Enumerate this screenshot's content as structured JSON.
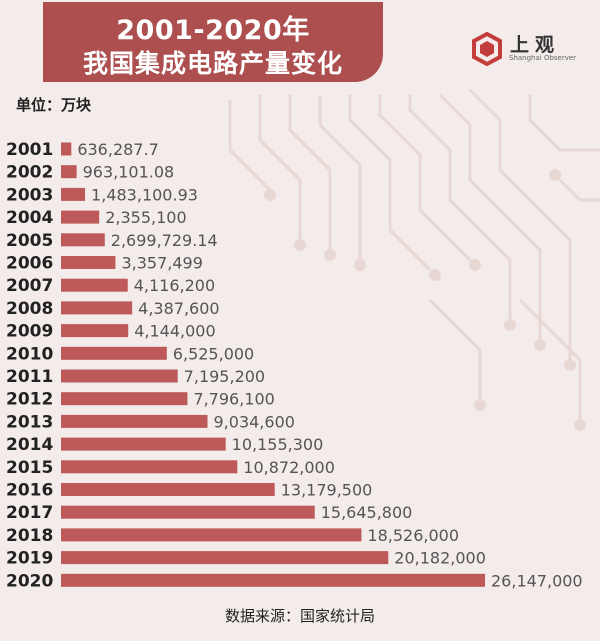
{
  "header": {
    "title_line1": "2001-2020年",
    "title_line2": "我国集成电路产量变化",
    "brand_name": "上观",
    "brand_sub": "Shanghai Observer"
  },
  "unit_label": "单位：万块",
  "source_label": "数据来源：国家统计局",
  "colors": {
    "bar": "#bd5958",
    "title_bg": "#ad4e4f",
    "text": "#222222",
    "value_text": "#555555"
  },
  "chart_data": {
    "type": "bar",
    "orientation": "horizontal",
    "title": "2001-2020年 我国集成电路产量变化",
    "unit": "万块",
    "xlim": [
      0,
      26147000
    ],
    "grid": false,
    "categories": [
      "2001",
      "2002",
      "2003",
      "2004",
      "2005",
      "2006",
      "2007",
      "2008",
      "2009",
      "2010",
      "2011",
      "2012",
      "2013",
      "2014",
      "2015",
      "2016",
      "2017",
      "2018",
      "2019",
      "2020"
    ],
    "values": [
      636287.7,
      963101.08,
      1483100.93,
      2355100,
      2699729.14,
      3357499,
      4116200,
      4387600,
      4144000,
      6525000,
      7195200,
      7796100,
      9034600,
      10155300,
      10872000,
      13179500,
      15645800,
      18526000,
      20182000,
      26147000
    ],
    "labels": [
      "636,287.7",
      "963,101.08",
      "1,483,100.93",
      "2,355,100",
      "2,699,729.14",
      "3,357,499",
      "4,116,200",
      "4,387,600",
      "4,144,000",
      "6,525,000",
      "7,195,200",
      "7,796,100",
      "9,034,600",
      "10,155,300",
      "10,872,000",
      "13,179,500",
      "15,645,800",
      "18,526,000",
      "20,182,000",
      "26,147,000"
    ]
  }
}
